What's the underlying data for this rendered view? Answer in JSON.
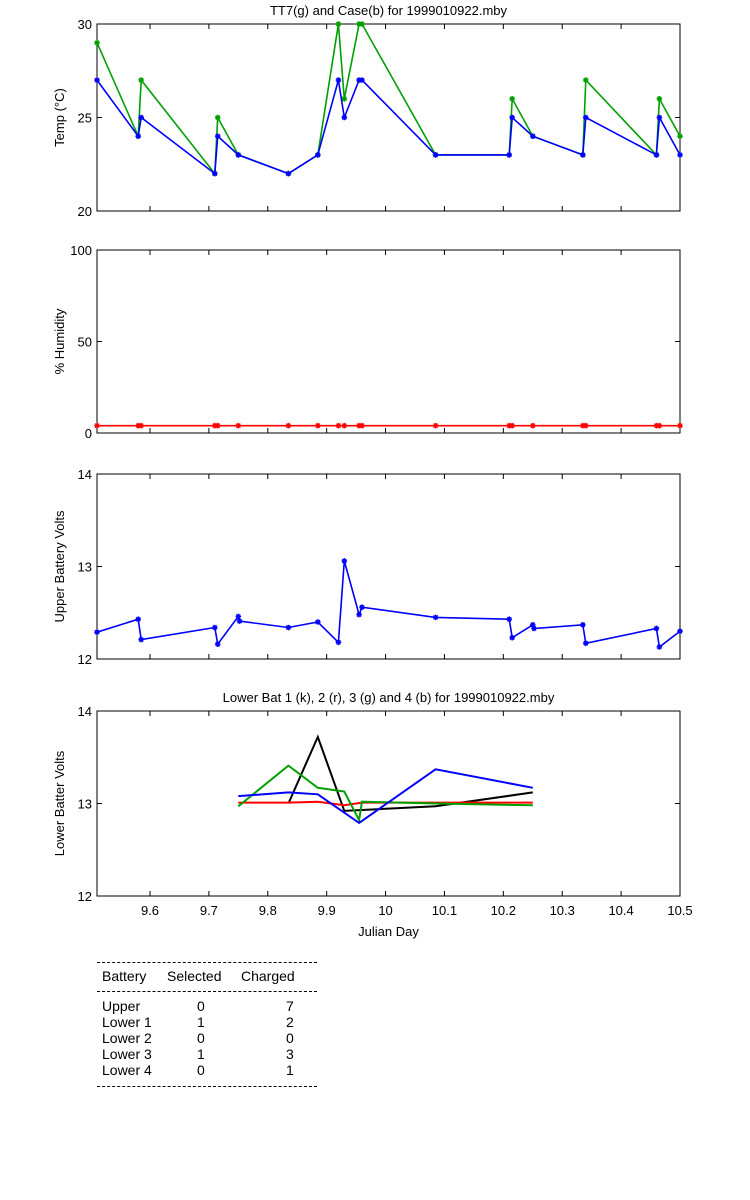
{
  "chart_data": [
    {
      "type": "line",
      "title": "TT7(g) and Case(b) for 1999010922.mby",
      "xlabel": "",
      "ylabel": "Temp  (°C)",
      "xlim": [
        9.51,
        10.5
      ],
      "ylim": [
        20,
        30
      ],
      "yticks": [
        20,
        25,
        30
      ],
      "xticks": [
        9.6,
        9.7,
        9.8,
        9.9,
        10,
        10.1,
        10.2,
        10.3,
        10.4,
        10.5
      ],
      "marker": "*",
      "series": [
        {
          "color": "#00a000",
          "x": [
            9.51,
            9.58,
            9.585,
            9.71,
            9.715,
            9.75,
            9.835,
            9.885,
            9.92,
            9.93,
            9.955,
            9.96,
            10.085,
            10.21,
            10.215,
            10.25,
            10.335,
            10.34,
            10.46,
            10.465,
            10.5
          ],
          "y": [
            29,
            24,
            27,
            22,
            25,
            23,
            22,
            23,
            30,
            26,
            30,
            30,
            23,
            23,
            26,
            24,
            23,
            27,
            23,
            26,
            24
          ]
        },
        {
          "color": "#0000ff",
          "x": [
            9.51,
            9.58,
            9.585,
            9.71,
            9.715,
            9.75,
            9.835,
            9.885,
            9.92,
            9.93,
            9.955,
            9.96,
            10.085,
            10.21,
            10.215,
            10.25,
            10.335,
            10.34,
            10.46,
            10.465,
            10.5
          ],
          "y": [
            27,
            24,
            25,
            22,
            24,
            23,
            22,
            23,
            27,
            25,
            27,
            27,
            23,
            23,
            25,
            24,
            23,
            25,
            23,
            25,
            23
          ]
        }
      ]
    },
    {
      "type": "line",
      "title": "",
      "xlabel": "",
      "ylabel": "% Humidity",
      "xlim": [
        9.51,
        10.5
      ],
      "ylim": [
        0,
        100
      ],
      "yticks": [
        0,
        50,
        100
      ],
      "xticks": [
        9.6,
        9.7,
        9.8,
        9.9,
        10,
        10.1,
        10.2,
        10.3,
        10.4,
        10.5
      ],
      "marker": "*",
      "series": [
        {
          "color": "#ff0000",
          "x": [
            9.51,
            9.58,
            9.585,
            9.71,
            9.715,
            9.75,
            9.835,
            9.885,
            9.92,
            9.93,
            9.955,
            9.96,
            10.085,
            10.21,
            10.215,
            10.25,
            10.335,
            10.34,
            10.46,
            10.465,
            10.5
          ],
          "y": [
            4,
            4,
            4,
            4,
            4,
            4,
            4,
            4,
            4,
            4,
            4,
            4,
            4,
            4,
            4,
            4,
            4,
            4,
            4,
            4,
            4
          ]
        }
      ]
    },
    {
      "type": "line",
      "title": "",
      "xlabel": "",
      "ylabel": "Upper Battery Volts",
      "xlim": [
        9.51,
        10.5
      ],
      "ylim": [
        12,
        14
      ],
      "yticks": [
        12,
        13,
        14
      ],
      "xticks": [
        9.6,
        9.7,
        9.8,
        9.9,
        10,
        10.1,
        10.2,
        10.3,
        10.4,
        10.5
      ],
      "marker": "*",
      "series": [
        {
          "color": "#0000ff",
          "x": [
            9.51,
            9.58,
            9.585,
            9.71,
            9.715,
            9.75,
            9.752,
            9.835,
            9.885,
            9.92,
            9.93,
            9.955,
            9.96,
            10.085,
            10.21,
            10.215,
            10.25,
            10.252,
            10.335,
            10.34,
            10.46,
            10.465,
            10.5
          ],
          "y": [
            12.29,
            12.43,
            12.21,
            12.34,
            12.16,
            12.46,
            12.41,
            12.34,
            12.4,
            12.18,
            13.06,
            12.48,
            12.56,
            12.45,
            12.43,
            12.23,
            12.37,
            12.33,
            12.37,
            12.17,
            12.33,
            12.13,
            12.3
          ]
        }
      ]
    },
    {
      "type": "line",
      "title": "Lower Bat 1 (k), 2 (r), 3 (g) and 4 (b) for 1999010922.mby",
      "xlabel": "Julian Day",
      "ylabel": "Lower Batter Volts",
      "xlim": [
        9.51,
        10.5
      ],
      "ylim": [
        12,
        14
      ],
      "yticks": [
        12,
        13,
        14
      ],
      "xticks": [
        9.6,
        9.7,
        9.8,
        9.9,
        10,
        10.1,
        10.2,
        10.3,
        10.4,
        10.5
      ],
      "series": [
        {
          "color": "#000000",
          "x": [
            9.835,
            9.885,
            9.93,
            9.96,
            10.085,
            10.25
          ],
          "y": [
            13.0,
            13.72,
            12.92,
            12.93,
            12.97,
            13.12
          ]
        },
        {
          "color": "#ff0000",
          "x": [
            9.75,
            9.835,
            9.885,
            9.93,
            9.96,
            10.085,
            10.25
          ],
          "y": [
            13.01,
            13.01,
            13.02,
            12.98,
            13.01,
            13.01,
            13.01
          ]
        },
        {
          "color": "#00a000",
          "x": [
            9.75,
            9.835,
            9.885,
            9.93,
            9.955,
            9.96,
            10.085,
            10.25
          ],
          "y": [
            12.97,
            13.41,
            13.17,
            13.13,
            12.82,
            13.02,
            13.0,
            12.98
          ]
        },
        {
          "color": "#0000ff",
          "x": [
            9.75,
            9.835,
            9.885,
            9.955,
            10.085,
            10.25
          ],
          "y": [
            13.08,
            13.12,
            13.1,
            12.79,
            13.37,
            13.17
          ]
        }
      ]
    }
  ],
  "battery_table": {
    "headers": [
      "Battery",
      "Selected",
      "Charged"
    ],
    "rows": [
      [
        "Upper",
        "0",
        "7"
      ],
      [
        "Lower 1",
        "1",
        "2"
      ],
      [
        "Lower 2",
        "0",
        "0"
      ],
      [
        "Lower 3",
        "1",
        "3"
      ],
      [
        "Lower 4",
        "0",
        "1"
      ]
    ]
  }
}
